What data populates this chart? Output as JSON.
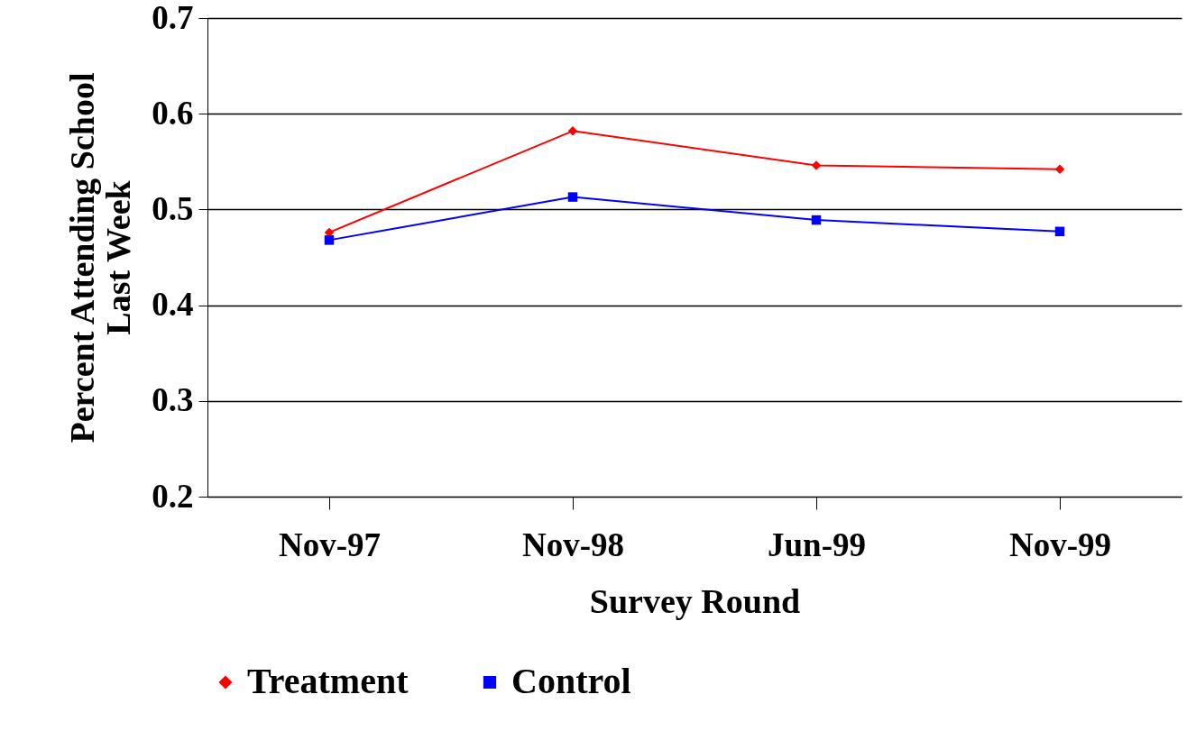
{
  "chart_data": {
    "type": "line",
    "xlabel": "Survey Round",
    "ylabel": "Percent Attending School\nLast Week",
    "categories": [
      "Nov-97",
      "Nov-98",
      "Jun-99",
      "Nov-99"
    ],
    "series": [
      {
        "name": "Treatment",
        "color": "#ff0000",
        "marker": "diamond",
        "values": [
          0.476,
          0.582,
          0.546,
          0.542
        ]
      },
      {
        "name": "Control",
        "color": "#0000ff",
        "marker": "square",
        "values": [
          0.468,
          0.513,
          0.489,
          0.477
        ]
      }
    ],
    "ylim": [
      0.2,
      0.7
    ],
    "yticks": [
      0.2,
      0.3,
      0.4,
      0.5,
      0.6,
      0.7
    ],
    "grid": "y",
    "legend": "bottom",
    "line_style": "solid"
  }
}
